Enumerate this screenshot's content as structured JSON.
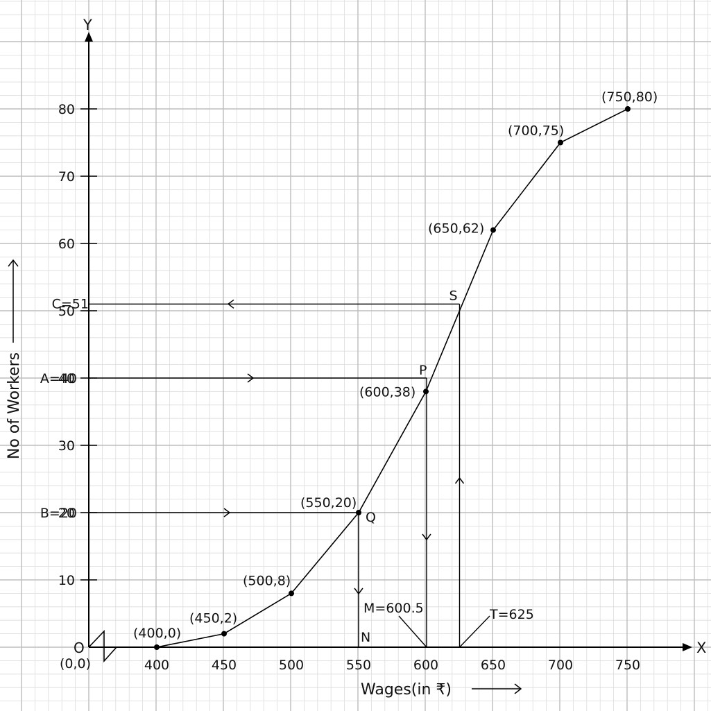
{
  "chart_data": {
    "type": "line",
    "title": "",
    "xlabel": "Wages(in ₹)",
    "ylabel": "No of Workers",
    "x_axis_letter": "X",
    "y_axis_letter": "Y",
    "origin_label": "O",
    "origin_coord_label": "(0,0)",
    "xlim": [
      400,
      750
    ],
    "ylim": [
      0,
      80
    ],
    "grid": true,
    "x_ticks": [
      400,
      450,
      500,
      550,
      600,
      650,
      700,
      750
    ],
    "y_ticks": [
      10,
      20,
      30,
      40,
      50,
      60,
      70,
      80
    ],
    "series": [
      {
        "points": [
          {
            "x": 400,
            "y": 0,
            "label": "(400,0)"
          },
          {
            "x": 450,
            "y": 2,
            "label": "(450,2)"
          },
          {
            "x": 500,
            "y": 8,
            "label": "(500,8)"
          },
          {
            "x": 550,
            "y": 20,
            "label": "(550,20)"
          },
          {
            "x": 600,
            "y": 38,
            "label": "(600,38)"
          },
          {
            "x": 650,
            "y": 62,
            "label": "(650,62)"
          },
          {
            "x": 700,
            "y": 75,
            "label": "(700,75)"
          },
          {
            "x": 750,
            "y": 80,
            "label": "(750,80)"
          }
        ]
      }
    ],
    "annotations": {
      "A": {
        "label": "A=40",
        "y": 40,
        "point_label": "P",
        "x": 600.5,
        "foot_label": "M=600.5"
      },
      "B": {
        "label": "B=20",
        "y": 20,
        "point_label": "Q",
        "x": 550,
        "foot_label": "N"
      },
      "C": {
        "label": "C=51",
        "y": 51,
        "point_label": "S",
        "x": 625,
        "foot_label": "T=625"
      }
    }
  }
}
